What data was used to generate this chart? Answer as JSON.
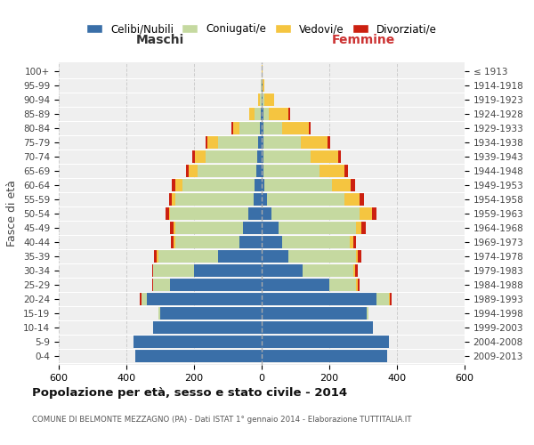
{
  "age_groups": [
    "0-4",
    "5-9",
    "10-14",
    "15-19",
    "20-24",
    "25-29",
    "30-34",
    "35-39",
    "40-44",
    "45-49",
    "50-54",
    "55-59",
    "60-64",
    "65-69",
    "70-74",
    "75-79",
    "80-84",
    "85-89",
    "90-94",
    "95-99",
    "100+"
  ],
  "birth_years": [
    "2009-2013",
    "2004-2008",
    "1999-2003",
    "1994-1998",
    "1989-1993",
    "1984-1988",
    "1979-1983",
    "1974-1978",
    "1969-1973",
    "1964-1968",
    "1959-1963",
    "1954-1958",
    "1949-1953",
    "1944-1948",
    "1939-1943",
    "1934-1938",
    "1929-1933",
    "1924-1928",
    "1919-1923",
    "1914-1918",
    "≤ 1913"
  ],
  "male_celibi": [
    375,
    380,
    320,
    300,
    340,
    270,
    200,
    130,
    65,
    55,
    40,
    25,
    20,
    15,
    12,
    10,
    5,
    2,
    0,
    0,
    0
  ],
  "male_coniugati": [
    0,
    0,
    0,
    5,
    15,
    50,
    120,
    175,
    190,
    200,
    230,
    230,
    215,
    175,
    155,
    120,
    60,
    20,
    5,
    2,
    0
  ],
  "male_vedovi": [
    0,
    0,
    0,
    0,
    0,
    0,
    0,
    5,
    5,
    5,
    5,
    10,
    20,
    25,
    30,
    30,
    20,
    15,
    5,
    0,
    0
  ],
  "male_divorziati": [
    0,
    0,
    0,
    0,
    5,
    5,
    5,
    8,
    8,
    10,
    10,
    10,
    10,
    8,
    8,
    5,
    5,
    0,
    0,
    0,
    0
  ],
  "female_celibi": [
    370,
    375,
    330,
    310,
    340,
    200,
    120,
    80,
    60,
    50,
    30,
    15,
    8,
    5,
    5,
    5,
    5,
    5,
    2,
    2,
    0
  ],
  "female_coniugati": [
    0,
    0,
    0,
    5,
    35,
    80,
    150,
    200,
    200,
    230,
    260,
    230,
    200,
    165,
    140,
    110,
    55,
    15,
    5,
    0,
    0
  ],
  "female_vedovi": [
    0,
    0,
    0,
    0,
    5,
    5,
    5,
    5,
    10,
    15,
    35,
    45,
    55,
    75,
    80,
    80,
    80,
    60,
    30,
    5,
    2
  ],
  "female_divorziati": [
    0,
    0,
    0,
    0,
    5,
    5,
    8,
    10,
    10,
    12,
    15,
    12,
    12,
    10,
    10,
    8,
    5,
    5,
    0,
    0,
    0
  ],
  "colors": {
    "celibi": "#3a6fa8",
    "coniugati": "#c5d9a0",
    "vedovi": "#f5c540",
    "divorziati": "#cc2010"
  },
  "title": "Popolazione per età, sesso e stato civile - 2014",
  "subtitle": "COMUNE DI BELMONTE MEZZAGNO (PA) - Dati ISTAT 1° gennaio 2014 - Elaborazione TUTTITALIA.IT",
  "xlabel_left": "Maschi",
  "xlabel_right": "Femmine",
  "ylabel_left": "Fasce di età",
  "xlim": 600,
  "bg_color": "#ffffff",
  "plot_bg": "#efefef",
  "grid_color": "#cccccc"
}
